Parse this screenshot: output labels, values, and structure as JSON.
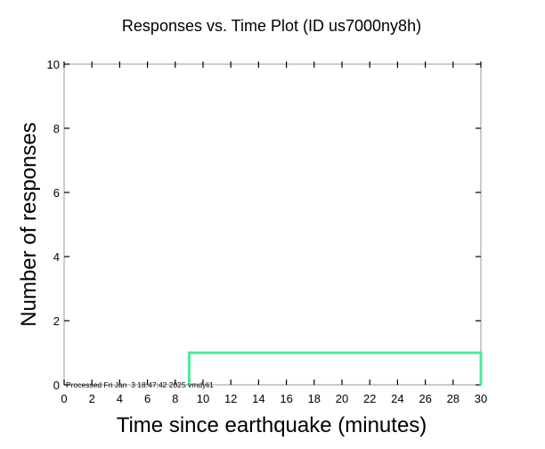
{
  "chart_data": {
    "type": "line",
    "title": "Responses vs. Time Plot (ID us7000ny8h)",
    "xlabel": "Time since earthquake (minutes)",
    "ylabel": "Number of responses",
    "xlim": [
      0,
      30
    ],
    "ylim": [
      0,
      10
    ],
    "x_ticks": [
      0,
      2,
      4,
      6,
      8,
      10,
      12,
      14,
      16,
      18,
      20,
      22,
      24,
      26,
      28,
      30
    ],
    "y_ticks": [
      0,
      2,
      4,
      6,
      8,
      10
    ],
    "series": [
      {
        "color": "#4de89c",
        "step": true,
        "points": [
          {
            "x": 9,
            "y": 0
          },
          {
            "x": 9,
            "y": 1
          },
          {
            "x": 30,
            "y": 1
          },
          {
            "x": 30,
            "y": 0
          }
        ]
      }
    ],
    "grid": false,
    "annotation": "Processed Fri Jan  3 18:47:42 2025 vmdyli1"
  }
}
